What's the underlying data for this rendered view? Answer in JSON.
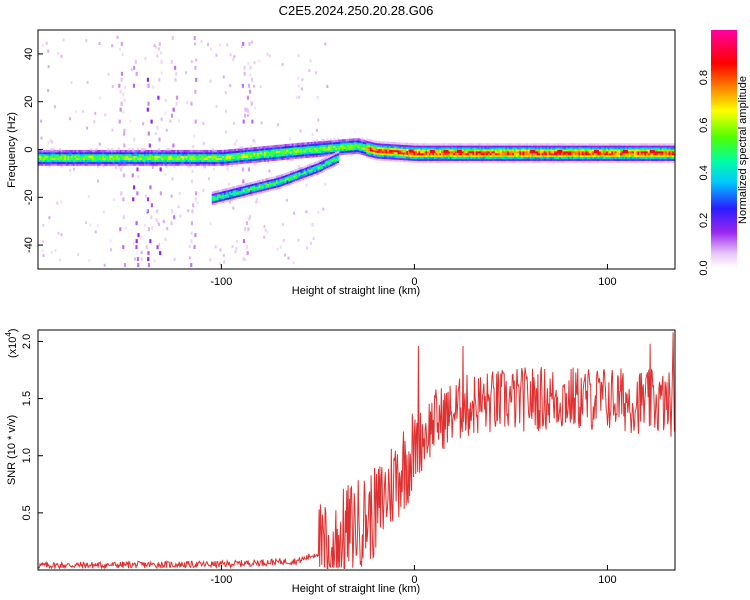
{
  "figure_title": "C2E5.2024.250.20.28.G06",
  "colors": {
    "snr_line": "#e03030",
    "axes": "#000000",
    "background": "#ffffff"
  },
  "chart_data": [
    {
      "type": "heatmap",
      "title": "C2E5.2024.250.20.28.G06",
      "xlabel": "Height of straight line (km)",
      "ylabel": "Frequency (Hz)",
      "xlim": [
        -195,
        135
      ],
      "ylim": [
        -50,
        50
      ],
      "x_ticks": [
        -100,
        0,
        100
      ],
      "x_tick_labels": [
        "-100",
        "0",
        "100"
      ],
      "y_ticks": [
        -40,
        -20,
        0,
        20,
        40
      ],
      "y_tick_labels": [
        "-40",
        "-20",
        "0",
        "20",
        "40"
      ],
      "colorbar": {
        "label": "Normalized spectral amplitude",
        "range": [
          0,
          1
        ],
        "ticks": [
          0.0,
          0.2,
          0.4,
          0.6,
          0.8
        ],
        "tick_labels": [
          "0.0",
          "0.2",
          "0.4",
          "0.6",
          "0.8"
        ],
        "colormap": "rainbow (white-magenta-blue-cyan-green-yellow-red-magenta)"
      },
      "features": [
        {
          "name": "main_band",
          "x": [
            -195,
            -100,
            -60,
            -30,
            -20,
            0,
            100,
            135
          ],
          "freq_hz": [
            -3,
            -3,
            0,
            2,
            0,
            -1,
            -1,
            -1
          ]
        },
        {
          "name": "secondary_band",
          "x": [
            -105,
            -90,
            -70,
            -50,
            -40
          ],
          "freq_hz": [
            -20,
            -17,
            -13,
            -7,
            -3
          ]
        }
      ]
    },
    {
      "type": "line",
      "series": [
        {
          "name": "SNR",
          "color": "#e03030"
        }
      ],
      "xlabel": "Height of straight line (km)",
      "ylabel": "SNR (10 * v/v)",
      "y_scale_label": "(x10",
      "y_scale_exp": "4",
      "xlim": [
        -195,
        135
      ],
      "ylim": [
        0,
        2.1
      ],
      "x_ticks": [
        -100,
        0,
        100
      ],
      "x_tick_labels": [
        "-100",
        "0",
        "100"
      ],
      "y_ticks": [
        0.5,
        1.0,
        1.5,
        2.0
      ],
      "y_tick_labels": [
        "0.5",
        "1.0",
        "1.5",
        "2.0"
      ],
      "trend": {
        "x": [
          -195,
          -100,
          -60,
          -45,
          -35,
          -20,
          -10,
          0,
          10,
          30,
          60,
          100,
          135
        ],
        "y": [
          0.04,
          0.05,
          0.08,
          0.18,
          0.35,
          0.5,
          0.8,
          1.05,
          1.3,
          1.45,
          1.5,
          1.5,
          1.45
        ]
      },
      "peaks": [
        {
          "x": 2,
          "y": 1.96
        },
        {
          "x": 25,
          "y": 1.96
        },
        {
          "x": 122,
          "y": 1.98
        },
        {
          "x": 134,
          "y": 2.08
        }
      ]
    }
  ]
}
